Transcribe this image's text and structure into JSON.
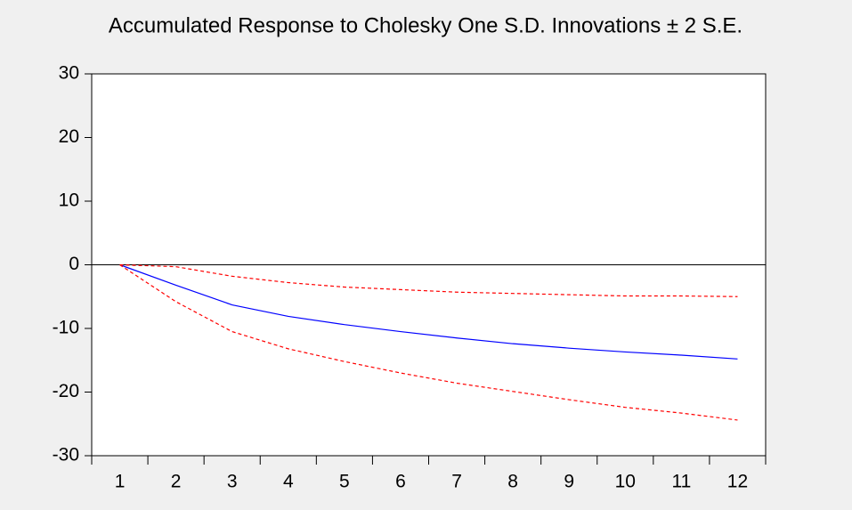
{
  "chart_data": {
    "type": "line",
    "title": "Accumulated Response to Cholesky One S.D. Innovations ± 2 S.E.",
    "categories": [
      1,
      2,
      3,
      4,
      5,
      6,
      7,
      8,
      9,
      10,
      11,
      12
    ],
    "series": [
      {
        "color": "#0000ff",
        "dashed": false,
        "values": [
          0,
          -3.2,
          -6.3,
          -8.1,
          -9.4,
          -10.5,
          -11.5,
          -12.4,
          -13.1,
          -13.7,
          -14.2,
          -14.8
        ]
      },
      {
        "color": "#ff0000",
        "dashed": true,
        "values": [
          0,
          -0.3,
          -1.8,
          -2.8,
          -3.5,
          -3.9,
          -4.3,
          -4.5,
          -4.7,
          -4.9,
          -4.9,
          -5.0
        ]
      },
      {
        "color": "#ff0000",
        "dashed": true,
        "values": [
          0,
          -5.8,
          -10.5,
          -13.2,
          -15.2,
          -17.0,
          -18.6,
          -19.9,
          -21.2,
          -22.4,
          -23.3,
          -24.4
        ]
      }
    ],
    "hline": 0,
    "ylim": [
      -30,
      30
    ],
    "yticks": [
      30,
      20,
      10,
      0,
      -10,
      -20,
      -30
    ],
    "grid": false
  }
}
